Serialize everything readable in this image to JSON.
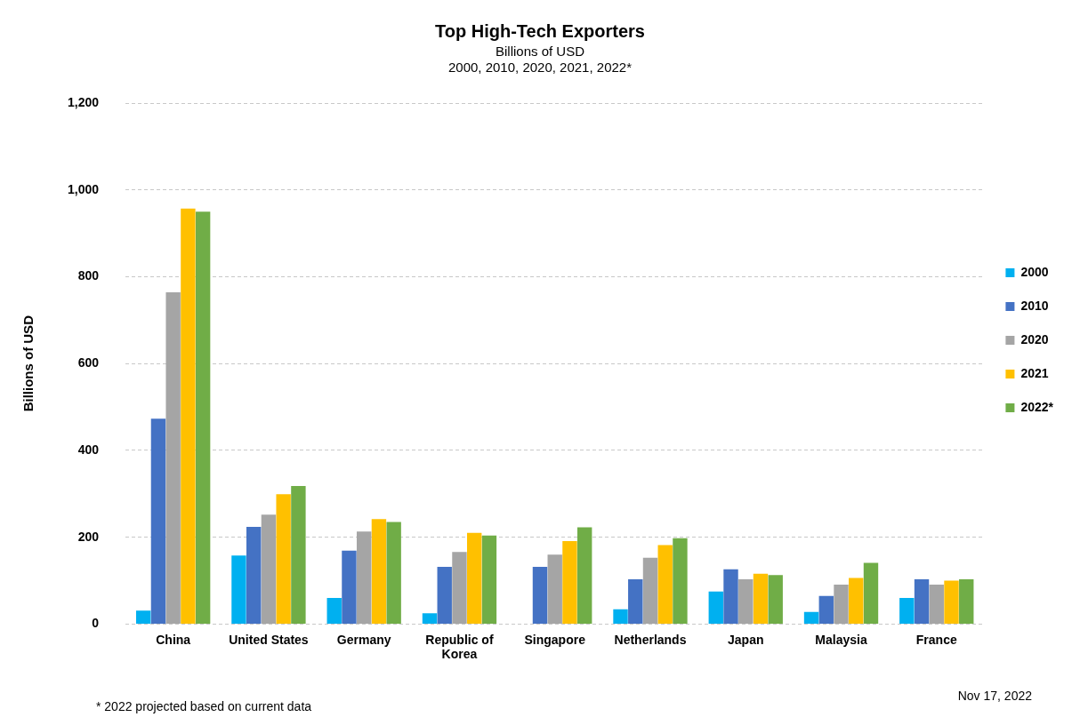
{
  "chart_data": {
    "type": "bar",
    "title": "Top High-Tech Exporters",
    "subtitle": "Billions of USD\n2000, 2010, 2020, 2021, 2022*",
    "ylabel": "Billions of USD",
    "categories": [
      "China",
      "United States",
      "Germany",
      "Republic of Korea",
      "Singapore",
      "Netherlands",
      "Japan",
      "Malaysia",
      "France"
    ],
    "series": [
      {
        "name": "2000",
        "color": "#00b0f0",
        "values": [
          31,
          158,
          60,
          25,
          null,
          34,
          75,
          28,
          60
        ]
      },
      {
        "name": "2010",
        "color": "#4472c4",
        "values": [
          473,
          224,
          169,
          132,
          132,
          103,
          126,
          65,
          103
        ]
      },
      {
        "name": "2020",
        "color": "#a5a5a5",
        "values": [
          764,
          252,
          213,
          166,
          160,
          153,
          103,
          91,
          91
        ]
      },
      {
        "name": "2021",
        "color": "#ffc000",
        "values": [
          957,
          299,
          242,
          210,
          191,
          182,
          116,
          106,
          100
        ]
      },
      {
        "name": "2022*",
        "color": "#70ad47",
        "values": [
          950,
          318,
          235,
          204,
          223,
          198,
          113,
          141,
          103
        ]
      }
    ],
    "ylim": [
      0,
      1200
    ],
    "yticks": [
      {
        "value": 0,
        "label": "0"
      },
      {
        "value": 200,
        "label": "200"
      },
      {
        "value": 400,
        "label": "400"
      },
      {
        "value": 600,
        "label": "600"
      },
      {
        "value": 800,
        "label": "800"
      },
      {
        "value": 1000,
        "label": "1,000"
      },
      {
        "value": 1200,
        "label": "1,200"
      }
    ],
    "grid": "y",
    "legend": "right",
    "annotations": [
      "* 2022 projected based on current data",
      "Nov 17, 2022"
    ]
  }
}
